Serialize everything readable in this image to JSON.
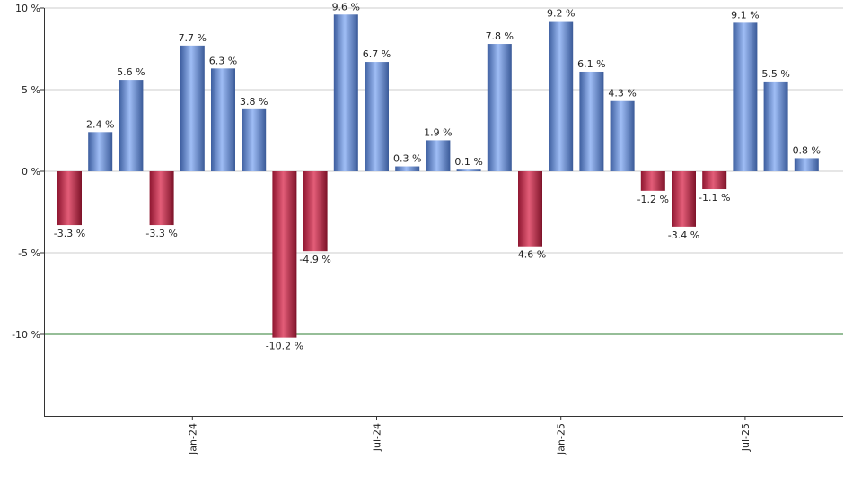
{
  "chart_data": {
    "type": "bar",
    "title": "",
    "xlabel": "",
    "ylabel": "",
    "ylim": [
      -15,
      10
    ],
    "y_ticks": [
      10,
      5,
      0,
      -5,
      -10
    ],
    "y_tick_labels": [
      "10 %",
      "5 %",
      "0 %",
      "-5 %",
      "-10 %"
    ],
    "grid": true,
    "reference_line": -10,
    "x_tick_labels": [
      {
        "label": "Jan-24",
        "index": 4
      },
      {
        "label": "Jul-24",
        "index": 10
      },
      {
        "label": "Jan-25",
        "index": 16
      },
      {
        "label": "Jul-25",
        "index": 22
      }
    ],
    "values": [
      -3.3,
      2.4,
      5.6,
      -3.3,
      7.7,
      6.3,
      3.8,
      -10.2,
      -4.9,
      9.6,
      6.7,
      0.3,
      1.9,
      0.1,
      7.8,
      -4.6,
      9.2,
      6.1,
      4.3,
      -1.2,
      -3.4,
      -1.1,
      9.1,
      5.5,
      0.8
    ],
    "labels": [
      "-3.3 %",
      "2.4 %",
      "5.6 %",
      "-3.3 %",
      "7.7 %",
      "6.3 %",
      "3.8 %",
      "-10.2 %",
      "-4.9 %",
      "9.6 %",
      "6.7 %",
      "0.3 %",
      "1.9 %",
      "0.1 %",
      "7.8 %",
      "-4.6 %",
      "9.2 %",
      "6.1 %",
      "4.3 %",
      "-1.2 %",
      "-3.4 %",
      "-1.1 %",
      "9.1 %",
      "5.5 %",
      "0.8 %"
    ],
    "colors": {
      "positive": "#7f9fe3",
      "negative": "#c53c5a",
      "grid": "#cccccc",
      "reference_line": "#2e7d32",
      "axis": "#333333"
    }
  }
}
